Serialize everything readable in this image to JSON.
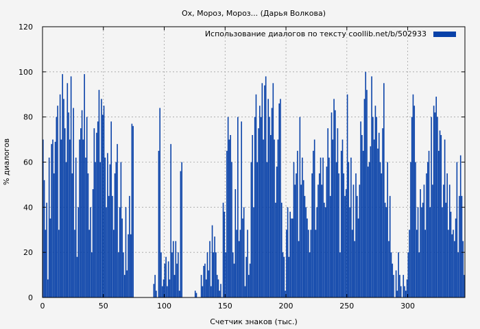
{
  "chart_data": {
    "type": "bar",
    "title": "Ох, Мороз, Мороз... (Дарья Волкова)",
    "xlabel": "Счетчик знаков (тыс.)",
    "ylabel": "% диалогов",
    "xlim": [
      0,
      347
    ],
    "ylim": [
      0,
      120
    ],
    "xticks": [
      0,
      50,
      100,
      150,
      200,
      250,
      300
    ],
    "yticks": [
      0,
      20,
      40,
      60,
      80,
      100,
      120
    ],
    "grid": true,
    "legend_position": "top-right",
    "bar_color": "#0841a8",
    "series": [
      {
        "name": "Использование диалогов по тексту  coollib.net/b/502933",
        "color": "#0841a8",
        "points": [
          [
            0,
            70
          ],
          [
            1,
            52
          ],
          [
            2,
            30
          ],
          [
            3,
            42
          ],
          [
            4,
            8
          ],
          [
            5,
            62
          ],
          [
            6,
            35
          ],
          [
            7,
            68
          ],
          [
            8,
            70
          ],
          [
            9,
            55
          ],
          [
            10,
            69
          ],
          [
            11,
            80
          ],
          [
            12,
            85
          ],
          [
            13,
            30
          ],
          [
            14,
            90
          ],
          [
            15,
            70
          ],
          [
            16,
            99
          ],
          [
            17,
            88
          ],
          [
            18,
            75
          ],
          [
            19,
            60
          ],
          [
            20,
            95
          ],
          [
            21,
            82
          ],
          [
            22,
            70
          ],
          [
            23,
            98
          ],
          [
            24,
            55
          ],
          [
            25,
            84
          ],
          [
            26,
            30
          ],
          [
            27,
            62
          ],
          [
            28,
            18
          ],
          [
            29,
            40
          ],
          [
            30,
            70
          ],
          [
            31,
            75
          ],
          [
            32,
            83
          ],
          [
            33,
            70
          ],
          [
            34,
            99
          ],
          [
            35,
            62
          ],
          [
            36,
            80
          ],
          [
            37,
            55
          ],
          [
            38,
            30
          ],
          [
            39,
            40
          ],
          [
            40,
            20
          ],
          [
            41,
            48
          ],
          [
            42,
            75
          ],
          [
            43,
            60
          ],
          [
            44,
            73
          ],
          [
            45,
            78
          ],
          [
            46,
            92
          ],
          [
            47,
            60
          ],
          [
            48,
            88
          ],
          [
            49,
            81
          ],
          [
            50,
            85
          ],
          [
            51,
            62
          ],
          [
            52,
            40
          ],
          [
            53,
            64
          ],
          [
            54,
            45
          ],
          [
            55,
            59
          ],
          [
            56,
            78
          ],
          [
            57,
            45
          ],
          [
            58,
            30
          ],
          [
            59,
            55
          ],
          [
            60,
            60
          ],
          [
            61,
            68
          ],
          [
            62,
            20
          ],
          [
            63,
            40
          ],
          [
            64,
            60
          ],
          [
            65,
            35
          ],
          [
            66,
            20
          ],
          [
            67,
            10
          ],
          [
            68,
            40
          ],
          [
            69,
            12
          ],
          [
            70,
            28
          ],
          [
            71,
            45
          ],
          [
            72,
            28
          ],
          [
            73,
            77
          ],
          [
            74,
            76
          ],
          [
            75,
            0
          ],
          [
            80,
            0
          ],
          [
            85,
            0
          ],
          [
            90,
            0
          ],
          [
            91,
            6
          ],
          [
            92,
            10
          ],
          [
            93,
            3
          ],
          [
            94,
            0
          ],
          [
            95,
            65
          ],
          [
            96,
            84
          ],
          [
            97,
            20
          ],
          [
            98,
            5
          ],
          [
            99,
            8
          ],
          [
            100,
            15
          ],
          [
            101,
            18
          ],
          [
            102,
            5
          ],
          [
            103,
            16
          ],
          [
            104,
            8
          ],
          [
            105,
            68
          ],
          [
            106,
            20
          ],
          [
            107,
            25
          ],
          [
            108,
            10
          ],
          [
            109,
            25
          ],
          [
            110,
            15
          ],
          [
            111,
            20
          ],
          [
            112,
            3
          ],
          [
            113,
            56
          ],
          [
            114,
            60
          ],
          [
            115,
            0
          ],
          [
            120,
            0
          ],
          [
            124,
            0
          ],
          [
            125,
            3
          ],
          [
            126,
            2
          ],
          [
            127,
            0
          ],
          [
            130,
            10
          ],
          [
            131,
            5
          ],
          [
            132,
            14
          ],
          [
            133,
            15
          ],
          [
            134,
            8
          ],
          [
            135,
            20
          ],
          [
            136,
            12
          ],
          [
            137,
            25
          ],
          [
            138,
            5
          ],
          [
            139,
            32
          ],
          [
            140,
            20
          ],
          [
            141,
            27
          ],
          [
            142,
            20
          ],
          [
            143,
            10
          ],
          [
            144,
            8
          ],
          [
            145,
            3
          ],
          [
            146,
            6
          ],
          [
            147,
            0
          ],
          [
            148,
            42
          ],
          [
            149,
            38
          ],
          [
            150,
            20
          ],
          [
            151,
            65
          ],
          [
            152,
            80
          ],
          [
            153,
            70
          ],
          [
            154,
            72
          ],
          [
            155,
            60
          ],
          [
            156,
            20
          ],
          [
            157,
            15
          ],
          [
            158,
            48
          ],
          [
            159,
            30
          ],
          [
            160,
            80
          ],
          [
            161,
            25
          ],
          [
            162,
            30
          ],
          [
            163,
            78
          ],
          [
            164,
            35
          ],
          [
            165,
            40
          ],
          [
            166,
            5
          ],
          [
            167,
            18
          ],
          [
            168,
            30
          ],
          [
            169,
            10
          ],
          [
            170,
            15
          ],
          [
            171,
            60
          ],
          [
            172,
            72
          ],
          [
            173,
            40
          ],
          [
            174,
            80
          ],
          [
            175,
            90
          ],
          [
            176,
            60
          ],
          [
            177,
            75
          ],
          [
            178,
            85
          ],
          [
            179,
            80
          ],
          [
            180,
            95
          ],
          [
            181,
            70
          ],
          [
            182,
            94
          ],
          [
            183,
            98
          ],
          [
            184,
            60
          ],
          [
            185,
            88
          ],
          [
            186,
            80
          ],
          [
            187,
            72
          ],
          [
            188,
            84
          ],
          [
            189,
            95
          ],
          [
            190,
            70
          ],
          [
            191,
            42
          ],
          [
            192,
            58
          ],
          [
            193,
            70
          ],
          [
            194,
            86
          ],
          [
            195,
            88
          ],
          [
            196,
            42
          ],
          [
            197,
            20
          ],
          [
            198,
            18
          ],
          [
            199,
            3
          ],
          [
            200,
            30
          ],
          [
            201,
            40
          ],
          [
            202,
            18
          ],
          [
            203,
            38
          ],
          [
            204,
            35
          ],
          [
            205,
            35
          ],
          [
            206,
            60
          ],
          [
            207,
            50
          ],
          [
            208,
            55
          ],
          [
            209,
            65
          ],
          [
            210,
            25
          ],
          [
            211,
            80
          ],
          [
            212,
            50
          ],
          [
            213,
            62
          ],
          [
            214,
            52
          ],
          [
            215,
            45
          ],
          [
            216,
            40
          ],
          [
            217,
            35
          ],
          [
            218,
            30
          ],
          [
            219,
            20
          ],
          [
            220,
            30
          ],
          [
            221,
            55
          ],
          [
            222,
            65
          ],
          [
            223,
            70
          ],
          [
            224,
            30
          ],
          [
            225,
            40
          ],
          [
            226,
            50
          ],
          [
            227,
            55
          ],
          [
            228,
            62
          ],
          [
            229,
            50
          ],
          [
            230,
            62
          ],
          [
            231,
            42
          ],
          [
            232,
            40
          ],
          [
            233,
            58
          ],
          [
            234,
            75
          ],
          [
            235,
            62
          ],
          [
            236,
            45
          ],
          [
            237,
            82
          ],
          [
            238,
            70
          ],
          [
            239,
            88
          ],
          [
            240,
            83
          ],
          [
            241,
            60
          ],
          [
            242,
            75
          ],
          [
            243,
            55
          ],
          [
            244,
            20
          ],
          [
            245,
            65
          ],
          [
            246,
            70
          ],
          [
            247,
            55
          ],
          [
            248,
            45
          ],
          [
            249,
            48
          ],
          [
            250,
            90
          ],
          [
            251,
            60
          ],
          [
            252,
            40
          ],
          [
            253,
            62
          ],
          [
            254,
            30
          ],
          [
            255,
            50
          ],
          [
            256,
            25
          ],
          [
            257,
            55
          ],
          [
            258,
            45
          ],
          [
            259,
            35
          ],
          [
            260,
            50
          ],
          [
            261,
            78
          ],
          [
            262,
            72
          ],
          [
            263,
            65
          ],
          [
            264,
            88
          ],
          [
            265,
            100
          ],
          [
            266,
            92
          ],
          [
            267,
            58
          ],
          [
            268,
            60
          ],
          [
            269,
            67
          ],
          [
            270,
            98
          ],
          [
            271,
            80
          ],
          [
            272,
            70
          ],
          [
            273,
            85
          ],
          [
            274,
            80
          ],
          [
            275,
            66
          ],
          [
            276,
            73
          ],
          [
            277,
            60
          ],
          [
            278,
            55
          ],
          [
            279,
            75
          ],
          [
            280,
            95
          ],
          [
            281,
            42
          ],
          [
            282,
            40
          ],
          [
            283,
            60
          ],
          [
            284,
            25
          ],
          [
            285,
            45
          ],
          [
            286,
            20
          ],
          [
            287,
            15
          ],
          [
            288,
            10
          ],
          [
            289,
            0
          ],
          [
            290,
            12
          ],
          [
            291,
            3
          ],
          [
            292,
            20
          ],
          [
            293,
            10
          ],
          [
            294,
            5
          ],
          [
            295,
            0
          ],
          [
            296,
            10
          ],
          [
            297,
            5
          ],
          [
            298,
            3
          ],
          [
            299,
            8
          ],
          [
            300,
            20
          ],
          [
            301,
            30
          ],
          [
            302,
            60
          ],
          [
            303,
            80
          ],
          [
            304,
            90
          ],
          [
            305,
            85
          ],
          [
            306,
            60
          ],
          [
            307,
            30
          ],
          [
            308,
            40
          ],
          [
            309,
            20
          ],
          [
            310,
            48
          ],
          [
            311,
            40
          ],
          [
            312,
            42
          ],
          [
            313,
            50
          ],
          [
            314,
            30
          ],
          [
            315,
            55
          ],
          [
            316,
            60
          ],
          [
            317,
            65
          ],
          [
            318,
            40
          ],
          [
            319,
            80
          ],
          [
            320,
            50
          ],
          [
            321,
            85
          ],
          [
            322,
            82
          ],
          [
            323,
            89
          ],
          [
            324,
            80
          ],
          [
            325,
            65
          ],
          [
            326,
            74
          ],
          [
            327,
            72
          ],
          [
            328,
            40
          ],
          [
            329,
            50
          ],
          [
            330,
            70
          ],
          [
            331,
            42
          ],
          [
            332,
            55
          ],
          [
            333,
            30
          ],
          [
            334,
            50
          ],
          [
            335,
            38
          ],
          [
            336,
            28
          ],
          [
            337,
            30
          ],
          [
            338,
            25
          ],
          [
            339,
            35
          ],
          [
            340,
            60
          ],
          [
            341,
            20
          ],
          [
            342,
            45
          ],
          [
            343,
            63
          ],
          [
            344,
            45
          ],
          [
            345,
            25
          ],
          [
            346,
            10
          ]
        ]
      }
    ]
  }
}
